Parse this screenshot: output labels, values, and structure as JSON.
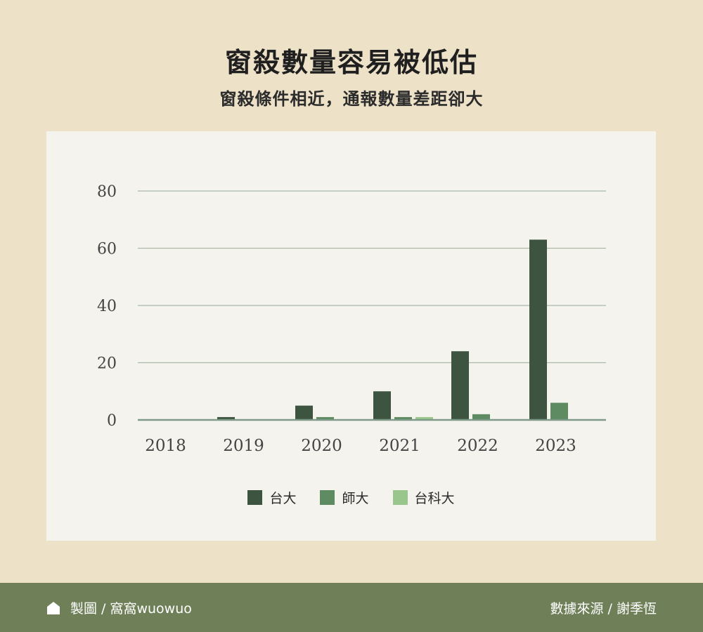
{
  "chart_data": {
    "type": "bar",
    "title": "窗殺數量容易被低估",
    "subtitle": "窗殺條件相近，通報數量差距卻大",
    "categories": [
      "2018",
      "2019",
      "2020",
      "2021",
      "2022",
      "2023"
    ],
    "series": [
      {
        "name": "台大",
        "values": [
          0,
          1,
          5,
          10,
          24,
          63
        ],
        "color": "#3d5540"
      },
      {
        "name": "師大",
        "values": [
          0,
          0,
          1,
          1,
          2,
          6
        ],
        "color": "#5f8b62"
      },
      {
        "name": "台科大",
        "values": [
          0,
          0,
          0,
          1,
          0,
          0
        ],
        "color": "#98c68c"
      }
    ],
    "yticks": [
      0,
      20,
      40,
      60,
      80
    ],
    "ylim": [
      0,
      80
    ],
    "grid": true,
    "legend_position": "bottom-center"
  },
  "footer": {
    "credit": "製圖 / 窩窩wuowuo",
    "source": "數據來源 / 謝季恆"
  },
  "colors": {
    "background": "#ede1c8",
    "panel": "#f5f3ed",
    "footer": "#6f8059",
    "gridline": "#a9b9a9"
  }
}
